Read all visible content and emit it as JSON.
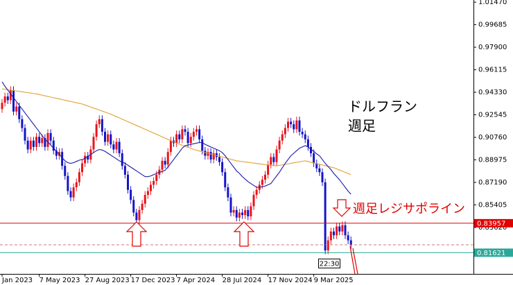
{
  "chart_data": {
    "type": "candlestick",
    "categories": [
      "Jan 2023",
      null,
      null,
      null,
      null,
      null,
      null,
      null,
      null,
      null,
      null,
      null,
      null,
      "7 May 2023",
      null,
      null,
      null,
      null,
      null,
      null,
      null,
      null,
      null,
      null,
      null,
      null,
      null,
      null,
      null,
      "27 Aug 2023",
      null,
      null,
      null,
      null,
      null,
      null,
      null,
      null,
      null,
      null,
      null,
      null,
      null,
      null,
      null,
      "17 Dec 2023",
      null,
      null,
      null,
      null,
      null,
      null,
      null,
      null,
      null,
      null,
      null,
      null,
      null,
      null,
      null,
      "7 Apr 2024",
      null,
      null,
      null,
      null,
      null,
      null,
      null,
      null,
      null,
      null,
      null,
      null,
      null,
      null,
      null,
      "28 Jul 2024",
      null,
      null,
      null,
      null,
      null,
      null,
      null,
      null,
      null,
      null,
      null,
      null,
      null,
      null,
      null,
      "17 Nov 2024",
      null,
      null,
      null,
      null,
      null,
      null,
      null,
      null,
      null,
      null,
      null,
      null,
      null,
      null,
      null,
      "9 Mar 2025",
      null,
      null,
      null,
      null,
      null,
      null,
      null,
      null,
      null,
      null,
      null,
      null,
      null
    ],
    "open": [
      0.93,
      0.935,
      0.94,
      0.937,
      0.945,
      0.928,
      0.932,
      0.922,
      0.915,
      0.905,
      0.898,
      0.905,
      0.9,
      0.908,
      0.903,
      0.907,
      0.9,
      0.911,
      0.905,
      0.897,
      0.893,
      0.896,
      0.885,
      0.877,
      0.865,
      0.86,
      0.868,
      0.872,
      0.88,
      0.887,
      0.893,
      0.89,
      0.898,
      0.908,
      0.918,
      0.922,
      0.912,
      0.904,
      0.91,
      0.902,
      0.898,
      0.904,
      0.895,
      0.885,
      0.878,
      0.866,
      0.858,
      0.848,
      0.842,
      0.85,
      0.855,
      0.862,
      0.865,
      0.87,
      0.873,
      0.878,
      0.882,
      0.889,
      0.886,
      0.896,
      0.905,
      0.903,
      0.91,
      0.906,
      0.914,
      0.912,
      0.903,
      0.908,
      0.912,
      0.914,
      0.906,
      0.897,
      0.893,
      0.896,
      0.89,
      0.895,
      0.892,
      0.888,
      0.88,
      0.868,
      0.86,
      0.848,
      0.85,
      0.844,
      0.848,
      0.846,
      0.85,
      0.845,
      0.853,
      0.862,
      0.866,
      0.87,
      0.874,
      0.878,
      0.886,
      0.892,
      0.888,
      0.898,
      0.905,
      0.91,
      0.915,
      0.92,
      0.918,
      0.914,
      0.921,
      0.912,
      0.91,
      0.906,
      0.9,
      0.895,
      0.887,
      0.883,
      0.88,
      0.872,
      0.818,
      0.826,
      0.833,
      0.83,
      0.837,
      0.833,
      0.838,
      0.83,
      0.826
    ],
    "high": [
      0.938,
      0.943,
      0.943,
      0.948,
      0.948,
      0.935,
      0.935,
      0.925,
      0.918,
      0.908,
      0.908,
      0.908,
      0.911,
      0.911,
      0.91,
      0.91,
      0.914,
      0.914,
      0.908,
      0.9,
      0.899,
      0.899,
      0.888,
      0.88,
      0.868,
      0.871,
      0.875,
      0.883,
      0.89,
      0.896,
      0.896,
      0.901,
      0.911,
      0.921,
      0.925,
      0.925,
      0.915,
      0.913,
      0.913,
      0.905,
      0.907,
      0.907,
      0.898,
      0.888,
      0.881,
      0.869,
      0.861,
      0.851,
      0.853,
      0.858,
      0.865,
      0.868,
      0.873,
      0.876,
      0.881,
      0.885,
      0.892,
      0.892,
      0.899,
      0.908,
      0.908,
      0.913,
      0.913,
      0.917,
      0.917,
      0.915,
      0.911,
      0.915,
      0.917,
      0.917,
      0.909,
      0.9,
      0.899,
      0.899,
      0.898,
      0.898,
      0.895,
      0.891,
      0.883,
      0.871,
      0.863,
      0.853,
      0.853,
      0.851,
      0.851,
      0.853,
      0.853,
      0.856,
      0.865,
      0.869,
      0.873,
      0.877,
      0.881,
      0.889,
      0.895,
      0.895,
      0.901,
      0.908,
      0.913,
      0.918,
      0.923,
      0.923,
      0.921,
      0.924,
      0.924,
      0.915,
      0.913,
      0.909,
      0.903,
      0.898,
      0.89,
      0.886,
      0.883,
      0.875,
      0.829,
      0.836,
      0.836,
      0.84,
      0.84,
      0.841,
      0.841,
      0.833,
      0.829
    ],
    "low": [
      0.927,
      0.932,
      0.934,
      0.934,
      0.925,
      0.925,
      0.919,
      0.912,
      0.902,
      0.895,
      0.895,
      0.897,
      0.897,
      0.9,
      0.9,
      0.897,
      0.897,
      0.902,
      0.894,
      0.89,
      0.89,
      0.882,
      0.874,
      0.862,
      0.857,
      0.857,
      0.865,
      0.869,
      0.877,
      0.884,
      0.887,
      0.887,
      0.895,
      0.905,
      0.915,
      0.909,
      0.901,
      0.901,
      0.899,
      0.895,
      0.895,
      0.892,
      0.882,
      0.875,
      0.863,
      0.855,
      0.845,
      0.839,
      0.839,
      0.847,
      0.852,
      0.859,
      0.862,
      0.867,
      0.87,
      0.875,
      0.879,
      0.883,
      0.883,
      0.893,
      0.9,
      0.9,
      0.903,
      0.903,
      0.909,
      0.9,
      0.9,
      0.905,
      0.909,
      0.903,
      0.894,
      0.89,
      0.89,
      0.887,
      0.887,
      0.889,
      0.885,
      0.877,
      0.865,
      0.857,
      0.845,
      0.845,
      0.841,
      0.841,
      0.843,
      0.843,
      0.842,
      0.842,
      0.85,
      0.859,
      0.863,
      0.867,
      0.871,
      0.875,
      0.883,
      0.885,
      0.885,
      0.895,
      0.902,
      0.907,
      0.912,
      0.915,
      0.911,
      0.911,
      0.909,
      0.907,
      0.903,
      0.897,
      0.892,
      0.884,
      0.88,
      0.877,
      0.869,
      0.815,
      0.815,
      0.823,
      0.827,
      0.827,
      0.83,
      0.83,
      0.827,
      0.823,
      0.819
    ],
    "close": [
      0.935,
      0.94,
      0.937,
      0.945,
      0.928,
      0.932,
      0.922,
      0.915,
      0.905,
      0.898,
      0.905,
      0.9,
      0.908,
      0.903,
      0.907,
      0.9,
      0.911,
      0.905,
      0.897,
      0.893,
      0.896,
      0.885,
      0.877,
      0.865,
      0.86,
      0.868,
      0.872,
      0.88,
      0.887,
      0.893,
      0.89,
      0.898,
      0.908,
      0.918,
      0.922,
      0.912,
      0.904,
      0.91,
      0.902,
      0.898,
      0.904,
      0.895,
      0.885,
      0.878,
      0.866,
      0.858,
      0.848,
      0.842,
      0.85,
      0.855,
      0.862,
      0.865,
      0.87,
      0.873,
      0.878,
      0.882,
      0.889,
      0.886,
      0.896,
      0.905,
      0.903,
      0.91,
      0.906,
      0.914,
      0.912,
      0.903,
      0.908,
      0.912,
      0.914,
      0.906,
      0.897,
      0.893,
      0.896,
      0.89,
      0.895,
      0.892,
      0.888,
      0.88,
      0.868,
      0.86,
      0.848,
      0.85,
      0.844,
      0.848,
      0.846,
      0.85,
      0.845,
      0.853,
      0.862,
      0.866,
      0.87,
      0.874,
      0.878,
      0.886,
      0.892,
      0.888,
      0.898,
      0.905,
      0.91,
      0.915,
      0.92,
      0.918,
      0.914,
      0.921,
      0.912,
      0.91,
      0.906,
      0.9,
      0.895,
      0.887,
      0.883,
      0.88,
      0.872,
      0.818,
      0.826,
      0.833,
      0.83,
      0.837,
      0.833,
      0.838,
      0.83,
      0.826,
      0.822
    ],
    "bull_color": "#e8141c",
    "bear_color": "#1414c8",
    "lines": [
      {
        "color": "#e0a030",
        "values": [
          0.946,
          0.9457,
          0.9453,
          0.945,
          0.9447,
          0.9443,
          0.944,
          0.9437,
          0.9433,
          0.943,
          0.9427,
          0.9423,
          0.942,
          0.9415,
          0.941,
          0.9405,
          0.94,
          0.9395,
          0.939,
          0.9385,
          0.938,
          0.9375,
          0.937,
          0.9365,
          0.936,
          0.9355,
          0.935,
          0.9345,
          0.934,
          0.9332,
          0.9324,
          0.9316,
          0.9308,
          0.93,
          0.9292,
          0.9284,
          0.9276,
          0.9268,
          0.926,
          0.925,
          0.924,
          0.923,
          0.922,
          0.921,
          0.92,
          0.919,
          0.918,
          0.917,
          0.916,
          0.915,
          0.914,
          0.913,
          0.912,
          0.911,
          0.91,
          0.909,
          0.908,
          0.907,
          0.906,
          0.905,
          0.904,
          0.903,
          0.9022,
          0.9013,
          0.9005,
          0.8997,
          0.8989,
          0.898,
          0.8974,
          0.8968,
          0.8962,
          0.8956,
          0.895,
          0.8944,
          0.8938,
          0.8932,
          0.8926,
          0.892,
          0.8914,
          0.8908,
          0.8902,
          0.8896,
          0.889,
          0.8887,
          0.8884,
          0.8881,
          0.8878,
          0.8875,
          0.8872,
          0.8869,
          0.8866,
          0.8863,
          0.886,
          0.8857,
          0.8854,
          0.8852,
          0.885,
          0.8854,
          0.8858,
          0.8862,
          0.8866,
          0.887,
          0.8874,
          0.8878,
          0.8882,
          0.8886,
          0.889,
          0.8885,
          0.8879,
          0.8874,
          0.8868,
          0.8863,
          0.8857,
          0.8852,
          0.8846,
          0.8841,
          0.8835,
          0.8826,
          0.8817,
          0.8808,
          0.8799,
          0.879,
          0.878
        ]
      },
      {
        "color": "#1a1aa6",
        "values": [
          0.9516,
          0.948,
          0.945,
          0.942,
          0.939,
          0.936,
          0.933,
          0.93,
          0.927,
          0.924,
          0.921,
          0.918,
          0.915,
          0.912,
          0.909,
          0.906,
          0.904,
          0.9015,
          0.899,
          0.8965,
          0.894,
          0.8915,
          0.889,
          0.8875,
          0.887,
          0.8875,
          0.8885,
          0.8895,
          0.89,
          0.891,
          0.8925,
          0.894,
          0.8955,
          0.897,
          0.898,
          0.8975,
          0.8965,
          0.895,
          0.8935,
          0.892,
          0.8905,
          0.889,
          0.888,
          0.887,
          0.8855,
          0.884,
          0.8825,
          0.881,
          0.8795,
          0.878,
          0.8765,
          0.8765,
          0.877,
          0.878,
          0.879,
          0.88,
          0.8805,
          0.8815,
          0.884,
          0.887,
          0.89,
          0.893,
          0.896,
          0.899,
          0.901,
          0.9015,
          0.902,
          0.9025,
          0.903,
          0.9035,
          0.9035,
          0.902,
          0.901,
          0.9,
          0.899,
          0.898,
          0.897,
          0.8955,
          0.893,
          0.89,
          0.887,
          0.884,
          0.881,
          0.879,
          0.8765,
          0.8745,
          0.8725,
          0.871,
          0.8695,
          0.868,
          0.868,
          0.8685,
          0.869,
          0.87,
          0.871,
          0.874,
          0.877,
          0.88,
          0.8835,
          0.887,
          0.89,
          0.893,
          0.895,
          0.897,
          0.899,
          0.9,
          0.901,
          0.9,
          0.898,
          0.8965,
          0.8945,
          0.893,
          0.89,
          0.887,
          0.8845,
          0.882,
          0.879,
          0.8765,
          0.874,
          0.871,
          0.868,
          0.865,
          0.8625
        ]
      }
    ],
    "hlines": [
      {
        "value": 0.83957,
        "color": "#e00000",
        "style": "solid",
        "boxed": true
      },
      {
        "value": 0.8225,
        "color": "#c87878",
        "style": "dashed",
        "boxed": false
      },
      {
        "value": 0.81621,
        "color": "#2aa89a",
        "style": "solid",
        "boxed": true
      }
    ],
    "ylim": [
      0.7994,
      1.0164
    ],
    "yticks": [
      {
        "value": 1.0147,
        "label": "1.01470"
      },
      0.99685,
      {
        "value": 0.979,
        "label": "0.97900"
      },
      0.96115,
      {
        "value": 0.9433,
        "label": "0.94330"
      },
      0.92545,
      {
        "value": 0.9076,
        "label": "0.90760"
      },
      0.88975,
      {
        "value": 0.8719,
        "label": "0.87190"
      },
      0.85405,
      {
        "value": 0.8362,
        "label": "0.83620"
      }
    ],
    "time_label": "22:30",
    "annotations": [
      "ドルフラン",
      "週足",
      "週足レジサポライン"
    ]
  }
}
